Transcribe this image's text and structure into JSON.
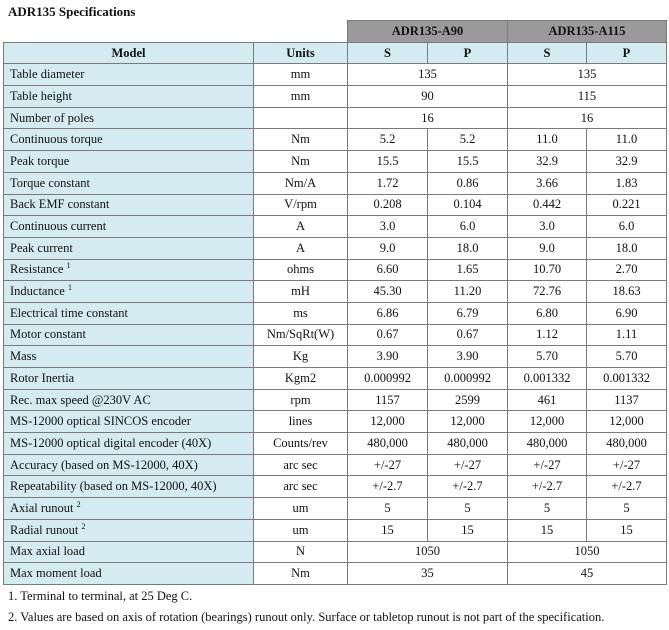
{
  "title": "ADR135 Specifications",
  "header": {
    "model_label": "Model",
    "units_label": "Units",
    "groups": [
      "ADR135-A90",
      "ADR135-A115"
    ],
    "subcolumns": [
      "S",
      "P",
      "S",
      "P"
    ]
  },
  "rows": [
    {
      "label": "Table diameter",
      "sup": "",
      "unit": "mm",
      "merged": [
        "135",
        "135"
      ]
    },
    {
      "label": "Table height",
      "sup": "",
      "unit": "mm",
      "merged": [
        "90",
        "115"
      ]
    },
    {
      "label": "Number of poles",
      "sup": "",
      "unit": "",
      "merged": [
        "16",
        "16"
      ]
    },
    {
      "label": "Continuous torque",
      "sup": "",
      "unit": "Nm",
      "values": [
        "5.2",
        "5.2",
        "11.0",
        "11.0"
      ]
    },
    {
      "label": "Peak torque",
      "sup": "",
      "unit": "Nm",
      "values": [
        "15.5",
        "15.5",
        "32.9",
        "32.9"
      ]
    },
    {
      "label": "Torque constant",
      "sup": "",
      "unit": "Nm/A",
      "values": [
        "1.72",
        "0.86",
        "3.66",
        "1.83"
      ]
    },
    {
      "label": "Back EMF constant",
      "sup": "",
      "unit": "V/rpm",
      "values": [
        "0.208",
        "0.104",
        "0.442",
        "0.221"
      ]
    },
    {
      "label": "Continuous current",
      "sup": "",
      "unit": "A",
      "values": [
        "3.0",
        "6.0",
        "3.0",
        "6.0"
      ]
    },
    {
      "label": "Peak current",
      "sup": "",
      "unit": "A",
      "values": [
        "9.0",
        "18.0",
        "9.0",
        "18.0"
      ]
    },
    {
      "label": "Resistance",
      "sup": "1",
      "unit": "ohms",
      "values": [
        "6.60",
        "1.65",
        "10.70",
        "2.70"
      ]
    },
    {
      "label": "Inductance",
      "sup": "1",
      "unit": "mH",
      "values": [
        "45.30",
        "11.20",
        "72.76",
        "18.63"
      ]
    },
    {
      "label": "Electrical time constant",
      "sup": "",
      "unit": "ms",
      "values": [
        "6.86",
        "6.79",
        "6.80",
        "6.90"
      ]
    },
    {
      "label": "Motor constant",
      "sup": "",
      "unit": "Nm/SqRt(W)",
      "values": [
        "0.67",
        "0.67",
        "1.12",
        "1.11"
      ]
    },
    {
      "label": "Mass",
      "sup": "",
      "unit": "Kg",
      "values": [
        "3.90",
        "3.90",
        "5.70",
        "5.70"
      ]
    },
    {
      "label": "Rotor Inertia",
      "sup": "",
      "unit": "Kgm2",
      "values": [
        "0.000992",
        "0.000992",
        "0.001332",
        "0.001332"
      ]
    },
    {
      "label": "Rec. max speed @230V AC",
      "sup": "",
      "unit": "rpm",
      "values": [
        "1157",
        "2599",
        "461",
        "1137"
      ]
    },
    {
      "label": "MS-12000 optical SINCOS encoder",
      "sup": "",
      "unit": "lines",
      "values": [
        "12,000",
        "12,000",
        "12,000",
        "12,000"
      ]
    },
    {
      "label": "MS-12000 optical digital encoder (40X)",
      "sup": "",
      "unit": "Counts/rev",
      "values": [
        "480,000",
        "480,000",
        "480,000",
        "480,000"
      ]
    },
    {
      "label": "Accuracy (based on MS-12000, 40X)",
      "sup": "",
      "unit": "arc sec",
      "values": [
        "+/-27",
        "+/-27",
        "+/-27",
        "+/-27"
      ]
    },
    {
      "label": "Repeatability    (based on MS-12000, 40X)",
      "sup": "",
      "unit": "arc sec",
      "values": [
        "+/-2.7",
        "+/-2.7",
        "+/-2.7",
        "+/-2.7"
      ]
    },
    {
      "label": "Axial runout",
      "sup": "2",
      "unit": "um",
      "values": [
        "5",
        "5",
        "5",
        "5"
      ]
    },
    {
      "label": "Radial runout",
      "sup": "2",
      "unit": "um",
      "values": [
        "15",
        "15",
        "15",
        "15"
      ]
    },
    {
      "label": "Max axial load",
      "sup": "",
      "unit": "N",
      "merged": [
        "1050",
        "1050"
      ]
    },
    {
      "label": "Max moment load",
      "sup": "",
      "unit": "Nm",
      "merged": [
        "35",
        "45"
      ]
    }
  ],
  "notes": [
    "1. Terminal to terminal, at 25 Deg C.",
    "2. Values are based on axis of rotation (bearings) runout only. Surface or tabletop runout is not part of the specification."
  ]
}
